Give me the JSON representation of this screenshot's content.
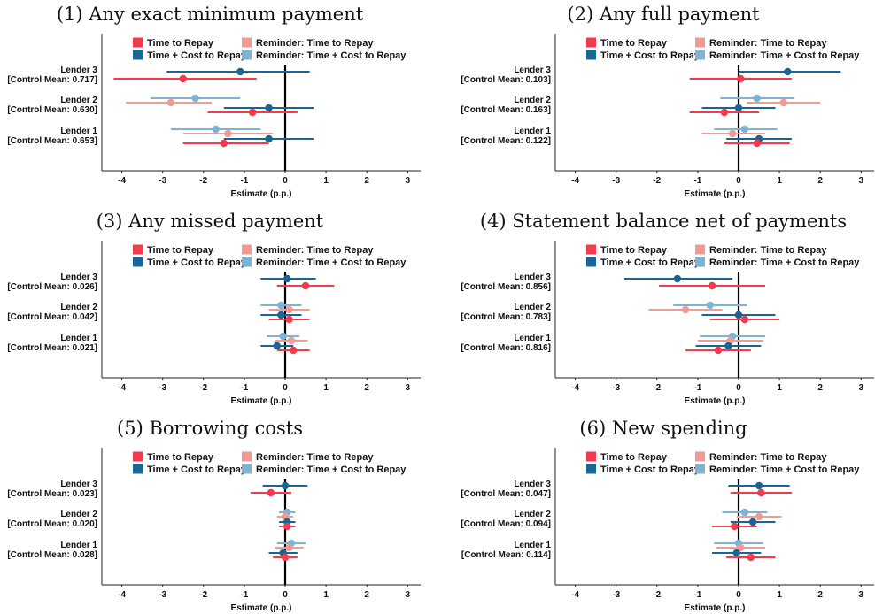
{
  "legend": {
    "series": [
      {
        "name": "Time to Repay",
        "color": "#f23b4c"
      },
      {
        "name": "Reminder: Time to Repay",
        "color": "#f39a92"
      },
      {
        "name": "Time + Cost to Repay",
        "color": "#1b6496"
      },
      {
        "name": "Reminder: Time + Cost to Repay",
        "color": "#7fb3d3"
      }
    ]
  },
  "chart_data": [
    {
      "type": "scatter",
      "title": "(1) Any exact minimum payment",
      "xlabel": "Estimate (p.p.)",
      "xlim": [
        -4.5,
        3.3
      ],
      "xticks": [
        -4,
        -3,
        -2,
        -1,
        0,
        1,
        2,
        3
      ],
      "lenders": [
        {
          "label": "Lender 3",
          "control_mean_label": "[Control Mean: 0.717]",
          "estimates": [
            {
              "series": "Time + Cost to Repay",
              "estimate": -1.1,
              "ci": [
                -2.9,
                0.6
              ]
            },
            {
              "series": "Time to Repay",
              "estimate": -2.5,
              "ci": [
                -4.2,
                -0.7
              ]
            }
          ]
        },
        {
          "label": "Lender 2",
          "control_mean_label": "[Control Mean: 0.630]",
          "estimates": [
            {
              "series": "Reminder: Time + Cost to Repay",
              "estimate": -2.2,
              "ci": [
                -3.3,
                -1.1
              ]
            },
            {
              "series": "Reminder: Time to Repay",
              "estimate": -2.8,
              "ci": [
                -3.9,
                -1.8
              ]
            },
            {
              "series": "Time + Cost to Repay",
              "estimate": -0.4,
              "ci": [
                -1.5,
                0.7
              ]
            },
            {
              "series": "Time to Repay",
              "estimate": -0.8,
              "ci": [
                -1.9,
                0.3
              ]
            }
          ]
        },
        {
          "label": "Lender 1",
          "control_mean_label": "[Control Mean: 0.653]",
          "estimates": [
            {
              "series": "Reminder: Time + Cost to Repay",
              "estimate": -1.7,
              "ci": [
                -2.8,
                -0.6
              ]
            },
            {
              "series": "Reminder: Time to Repay",
              "estimate": -1.4,
              "ci": [
                -2.5,
                -0.3
              ]
            },
            {
              "series": "Time + Cost to Repay",
              "estimate": -0.4,
              "ci": [
                -1.5,
                0.7
              ]
            },
            {
              "series": "Time to Repay",
              "estimate": -1.5,
              "ci": [
                -2.5,
                -0.4
              ]
            }
          ]
        }
      ]
    },
    {
      "type": "scatter",
      "title": "(2) Any full payment",
      "xlabel": "Estimate (p.p.)",
      "xlim": [
        -4.5,
        3.3
      ],
      "xticks": [
        -4,
        -3,
        -2,
        -1,
        0,
        1,
        2,
        3
      ],
      "lenders": [
        {
          "label": "Lender 3",
          "control_mean_label": "[Control Mean: 0.103]",
          "estimates": [
            {
              "series": "Time + Cost to Repay",
              "estimate": 1.2,
              "ci": [
                0.0,
                2.5
              ]
            },
            {
              "series": "Time to Repay",
              "estimate": 0.05,
              "ci": [
                -1.2,
                1.3
              ]
            }
          ]
        },
        {
          "label": "Lender 2",
          "control_mean_label": "[Control Mean: 0.163]",
          "estimates": [
            {
              "series": "Reminder: Time + Cost to Repay",
              "estimate": 0.45,
              "ci": [
                -0.45,
                1.35
              ]
            },
            {
              "series": "Reminder: Time to Repay",
              "estimate": 1.1,
              "ci": [
                0.2,
                2.0
              ]
            },
            {
              "series": "Time + Cost to Repay",
              "estimate": 0.0,
              "ci": [
                -0.9,
                0.9
              ]
            },
            {
              "series": "Time to Repay",
              "estimate": -0.35,
              "ci": [
                -1.2,
                0.5
              ]
            }
          ]
        },
        {
          "label": "Lender 1",
          "control_mean_label": "[Control Mean: 0.122]",
          "estimates": [
            {
              "series": "Reminder: Time + Cost to Repay",
              "estimate": 0.15,
              "ci": [
                -0.6,
                0.95
              ]
            },
            {
              "series": "Reminder: Time to Repay",
              "estimate": -0.15,
              "ci": [
                -0.9,
                0.65
              ]
            },
            {
              "series": "Time + Cost to Repay",
              "estimate": 0.5,
              "ci": [
                -0.3,
                1.3
              ]
            },
            {
              "series": "Time to Repay",
              "estimate": 0.45,
              "ci": [
                -0.35,
                1.25
              ]
            }
          ]
        }
      ]
    },
    {
      "type": "scatter",
      "title": "(3) Any missed payment",
      "xlabel": "Estimate (p.p.)",
      "xlim": [
        -4.5,
        3.3
      ],
      "xticks": [
        -4,
        -3,
        -2,
        -1,
        0,
        1,
        2,
        3
      ],
      "lenders": [
        {
          "label": "Lender 3",
          "control_mean_label": "[Control Mean: 0.026]",
          "estimates": [
            {
              "series": "Time + Cost to Repay",
              "estimate": 0.05,
              "ci": [
                -0.6,
                0.75
              ]
            },
            {
              "series": "Time to Repay",
              "estimate": 0.5,
              "ci": [
                -0.2,
                1.2
              ]
            }
          ]
        },
        {
          "label": "Lender 2",
          "control_mean_label": "[Control Mean: 0.042]",
          "estimates": [
            {
              "series": "Reminder: Time + Cost to Repay",
              "estimate": -0.1,
              "ci": [
                -0.6,
                0.4
              ]
            },
            {
              "series": "Reminder: Time to Repay",
              "estimate": 0.1,
              "ci": [
                -0.4,
                0.6
              ]
            },
            {
              "series": "Time + Cost to Repay",
              "estimate": -0.1,
              "ci": [
                -0.6,
                0.4
              ]
            },
            {
              "series": "Time to Repay",
              "estimate": 0.1,
              "ci": [
                -0.4,
                0.6
              ]
            }
          ]
        },
        {
          "label": "Lender 1",
          "control_mean_label": "[Control Mean: 0.021]",
          "estimates": [
            {
              "series": "Reminder: Time + Cost to Repay",
              "estimate": -0.05,
              "ci": [
                -0.45,
                0.35
              ]
            },
            {
              "series": "Reminder: Time to Repay",
              "estimate": 0.15,
              "ci": [
                -0.25,
                0.55
              ]
            },
            {
              "series": "Time + Cost to Repay",
              "estimate": -0.2,
              "ci": [
                -0.6,
                0.2
              ]
            },
            {
              "series": "Time to Repay",
              "estimate": 0.2,
              "ci": [
                -0.2,
                0.6
              ]
            }
          ]
        }
      ]
    },
    {
      "type": "scatter",
      "title": "(4) Statement balance net of payments",
      "xlabel": "Estimate (p.p.)",
      "xlim": [
        -4.5,
        3.3
      ],
      "xticks": [
        -4,
        -3,
        -2,
        -1,
        0,
        1,
        2,
        3
      ],
      "lenders": [
        {
          "label": "Lender 3",
          "control_mean_label": "[Control Mean: 0.856]",
          "estimates": [
            {
              "series": "Time + Cost to Repay",
              "estimate": -1.5,
              "ci": [
                -2.8,
                -0.15
              ]
            },
            {
              "series": "Time to Repay",
              "estimate": -0.65,
              "ci": [
                -1.95,
                0.65
              ]
            }
          ]
        },
        {
          "label": "Lender 2",
          "control_mean_label": "[Control Mean: 0.783]",
          "estimates": [
            {
              "series": "Reminder: Time + Cost to Repay",
              "estimate": -0.7,
              "ci": [
                -1.6,
                0.2
              ]
            },
            {
              "series": "Reminder: Time to Repay",
              "estimate": -1.3,
              "ci": [
                -2.2,
                -0.4
              ]
            },
            {
              "series": "Time + Cost to Repay",
              "estimate": 0.0,
              "ci": [
                -0.9,
                0.9
              ]
            },
            {
              "series": "Time to Repay",
              "estimate": 0.15,
              "ci": [
                -0.7,
                1.0
              ]
            }
          ]
        },
        {
          "label": "Lender 1",
          "control_mean_label": "[Control Mean: 0.816]",
          "estimates": [
            {
              "series": "Reminder: Time + Cost to Repay",
              "estimate": -0.15,
              "ci": [
                -0.95,
                0.65
              ]
            },
            {
              "series": "Reminder: Time to Repay",
              "estimate": -0.2,
              "ci": [
                -1.0,
                0.6
              ]
            },
            {
              "series": "Time + Cost to Repay",
              "estimate": -0.25,
              "ci": [
                -1.05,
                0.55
              ]
            },
            {
              "series": "Time to Repay",
              "estimate": -0.5,
              "ci": [
                -1.3,
                0.3
              ]
            }
          ]
        }
      ]
    },
    {
      "type": "scatter",
      "title": "(5) Borrowing costs",
      "xlabel": "Estimate (p.p.)",
      "xlim": [
        -4.5,
        3.3
      ],
      "xticks": [
        -4,
        -3,
        -2,
        -1,
        0,
        1,
        2,
        3
      ],
      "lenders": [
        {
          "label": "Lender 3",
          "control_mean_label": "[Control Mean: 0.023]",
          "estimates": [
            {
              "series": "Time + Cost to Repay",
              "estimate": 0.0,
              "ci": [
                -0.55,
                0.55
              ]
            },
            {
              "series": "Time to Repay",
              "estimate": -0.35,
              "ci": [
                -0.85,
                0.15
              ]
            }
          ]
        },
        {
          "label": "Lender 2",
          "control_mean_label": "[Control Mean: 0.020]",
          "estimates": [
            {
              "series": "Reminder: Time + Cost to Repay",
              "estimate": 0.05,
              "ci": [
                -0.15,
                0.25
              ]
            },
            {
              "series": "Reminder: Time to Repay",
              "estimate": 0.0,
              "ci": [
                -0.2,
                0.2
              ]
            },
            {
              "series": "Time + Cost to Repay",
              "estimate": 0.05,
              "ci": [
                -0.15,
                0.25
              ]
            },
            {
              "series": "Time to Repay",
              "estimate": 0.05,
              "ci": [
                -0.15,
                0.25
              ]
            }
          ]
        },
        {
          "label": "Lender 1",
          "control_mean_label": "[Control Mean: 0.028]",
          "estimates": [
            {
              "series": "Reminder: Time + Cost to Repay",
              "estimate": 0.15,
              "ci": [
                -0.2,
                0.5
              ]
            },
            {
              "series": "Reminder: Time to Repay",
              "estimate": 0.1,
              "ci": [
                -0.25,
                0.45
              ]
            },
            {
              "series": "Time + Cost to Repay",
              "estimate": -0.05,
              "ci": [
                -0.4,
                0.3
              ]
            },
            {
              "series": "Time to Repay",
              "estimate": 0.0,
              "ci": [
                -0.3,
                0.3
              ]
            }
          ]
        }
      ]
    },
    {
      "type": "scatter",
      "title": "(6) New spending",
      "xlabel": "Estimate (p.p.)",
      "xlim": [
        -4.5,
        3.3
      ],
      "xticks": [
        -4,
        -3,
        -2,
        -1,
        0,
        1,
        2,
        3
      ],
      "lenders": [
        {
          "label": "Lender 3",
          "control_mean_label": "[Control Mean: 0.047]",
          "estimates": [
            {
              "series": "Time + Cost to Repay",
              "estimate": 0.5,
              "ci": [
                -0.25,
                1.25
              ]
            },
            {
              "series": "Time to Repay",
              "estimate": 0.55,
              "ci": [
                -0.2,
                1.3
              ]
            }
          ]
        },
        {
          "label": "Lender 2",
          "control_mean_label": "[Control Mean: 0.094]",
          "estimates": [
            {
              "series": "Reminder: Time + Cost to Repay",
              "estimate": 0.15,
              "ci": [
                -0.4,
                0.7
              ]
            },
            {
              "series": "Reminder: Time to Repay",
              "estimate": 0.5,
              "ci": [
                -0.05,
                1.05
              ]
            },
            {
              "series": "Time + Cost to Repay",
              "estimate": 0.35,
              "ci": [
                -0.2,
                0.9
              ]
            },
            {
              "series": "Time to Repay",
              "estimate": -0.1,
              "ci": [
                -0.65,
                0.45
              ]
            }
          ]
        },
        {
          "label": "Lender 1",
          "control_mean_label": "[Control Mean: 0.114]",
          "estimates": [
            {
              "series": "Reminder: Time + Cost to Repay",
              "estimate": 0.0,
              "ci": [
                -0.6,
                0.6
              ]
            },
            {
              "series": "Reminder: Time to Repay",
              "estimate": 0.05,
              "ci": [
                -0.55,
                0.65
              ]
            },
            {
              "series": "Time + Cost to Repay",
              "estimate": -0.05,
              "ci": [
                -0.65,
                0.55
              ]
            },
            {
              "series": "Time to Repay",
              "estimate": 0.3,
              "ci": [
                -0.3,
                0.9
              ]
            }
          ]
        }
      ]
    }
  ]
}
